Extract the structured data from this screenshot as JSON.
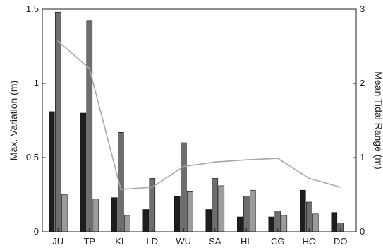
{
  "chart_data": {
    "type": "bar",
    "title": "",
    "categories": [
      "JU",
      "TP",
      "KL",
      "LD",
      "WU",
      "SA",
      "HL",
      "CG",
      "HO",
      "DO"
    ],
    "series": [
      {
        "values": [
          0.81,
          0.8,
          0.23,
          0.15,
          0.24,
          0.15,
          0.1,
          0.1,
          0.28,
          0.13
        ]
      },
      {
        "values": [
          1.48,
          1.42,
          0.67,
          0.36,
          0.6,
          0.36,
          0.24,
          0.14,
          0.2,
          0.06
        ]
      },
      {
        "values": [
          0.25,
          0.22,
          0.11,
          0.0,
          0.27,
          0.31,
          0.28,
          0.11,
          0.12,
          0.0
        ]
      }
    ],
    "line": {
      "axis": "right",
      "values": [
        2.57,
        2.2,
        0.57,
        0.6,
        0.88,
        0.94,
        0.97,
        0.99,
        0.72,
        0.6
      ]
    },
    "ylabel": "Max. Variation (m)",
    "ylim": [
      0,
      1.5
    ],
    "yticks": [
      "0",
      "0.5",
      "1",
      "1.5"
    ],
    "y2label": "Mean Tidal Range (m)",
    "y2lim": [
      0,
      3
    ],
    "y2ticks": [
      "0",
      "1",
      "2",
      "3"
    ],
    "grid": false,
    "legend": "none",
    "colors": {
      "series": [
        "#1e1e1e",
        "#6e6e6e",
        "#9c9c9c"
      ],
      "line": "#a8a8a8",
      "axis": "#222222"
    }
  }
}
